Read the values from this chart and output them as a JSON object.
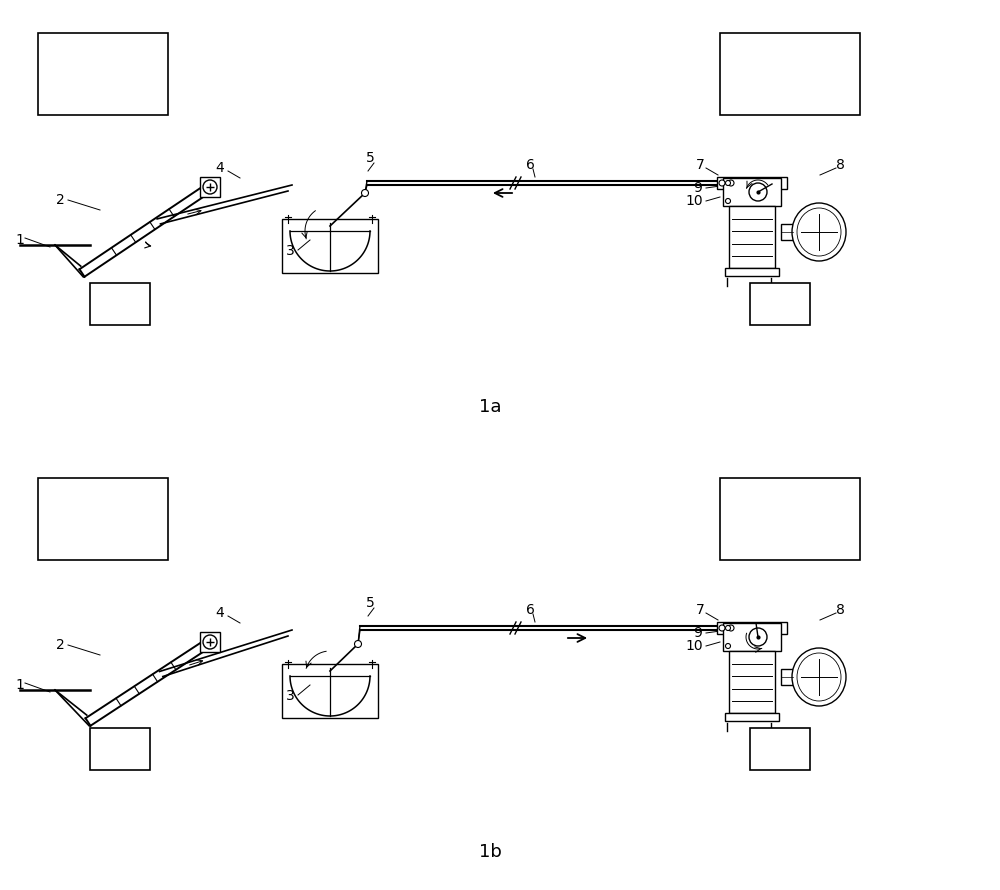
{
  "bg_color": "#ffffff",
  "line_color": "#000000",
  "fig_width": 10.0,
  "fig_height": 8.9,
  "title_1a": "1a",
  "title_1b": "1b"
}
